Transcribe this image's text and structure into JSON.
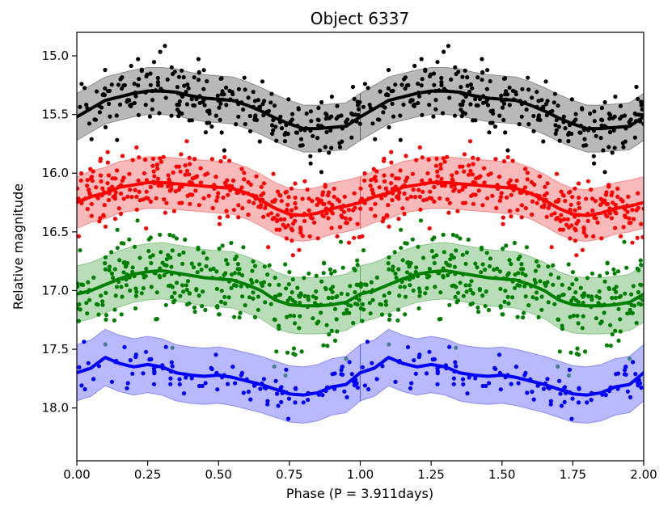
{
  "chart_data": {
    "type": "scatter",
    "title": "Object 6337",
    "xlabel": "Phase (P = 3.911days)",
    "ylabel": "Relative magnitude",
    "xlim": [
      0.0,
      2.0
    ],
    "ylim": [
      18.45,
      14.8
    ],
    "y_inverted": true,
    "grid": false,
    "legend": "none",
    "x_ticks": [
      0.0,
      0.25,
      0.5,
      0.75,
      1.0,
      1.25,
      1.5,
      1.75,
      2.0
    ],
    "x_tick_labels": [
      "0.00",
      "0.25",
      "0.50",
      "0.75",
      "1.00",
      "1.25",
      "1.50",
      "1.75",
      "2.00"
    ],
    "y_ticks": [
      15.0,
      15.5,
      16.0,
      16.5,
      17.0,
      17.5,
      18.0
    ],
    "y_tick_labels": [
      "15.0",
      "15.5",
      "16.0",
      "16.5",
      "17.0",
      "17.5",
      "18.0"
    ],
    "period_days": 3.911,
    "series": [
      {
        "color": "#000000",
        "band_color": "#808080",
        "trend_phase": [
          0.0,
          0.05,
          0.1,
          0.15,
          0.2,
          0.25,
          0.3,
          0.35,
          0.4,
          0.45,
          0.5,
          0.55,
          0.6,
          0.65,
          0.7,
          0.75,
          0.8,
          0.85,
          0.9,
          0.95,
          1.0
        ],
        "trend_mag": [
          15.52,
          15.45,
          15.38,
          15.35,
          15.32,
          15.3,
          15.3,
          15.31,
          15.34,
          15.36,
          15.37,
          15.38,
          15.42,
          15.47,
          15.53,
          15.58,
          15.62,
          15.62,
          15.61,
          15.6,
          15.52
        ],
        "band_halfwidth": 0.2,
        "scatter_sigma": 0.14,
        "n_points": 260
      },
      {
        "color": "#ff0000",
        "band_color": "#f08080",
        "trend_phase": [
          0.0,
          0.05,
          0.1,
          0.15,
          0.2,
          0.25,
          0.3,
          0.35,
          0.4,
          0.45,
          0.5,
          0.55,
          0.6,
          0.65,
          0.7,
          0.75,
          0.8,
          0.85,
          0.9,
          0.95,
          1.0
        ],
        "trend_mag": [
          16.25,
          16.2,
          16.17,
          16.12,
          16.1,
          16.08,
          16.08,
          16.09,
          16.1,
          16.11,
          16.12,
          16.13,
          16.17,
          16.23,
          16.3,
          16.35,
          16.36,
          16.34,
          16.3,
          16.28,
          16.25
        ],
        "band_halfwidth": 0.22,
        "scatter_sigma": 0.14,
        "n_points": 330
      },
      {
        "color": "#008000",
        "band_color": "#80c080",
        "trend_phase": [
          0.0,
          0.05,
          0.1,
          0.15,
          0.2,
          0.25,
          0.3,
          0.35,
          0.4,
          0.45,
          0.5,
          0.55,
          0.6,
          0.65,
          0.7,
          0.75,
          0.8,
          0.85,
          0.9,
          0.95,
          1.0
        ],
        "trend_mag": [
          17.03,
          17.0,
          16.95,
          16.9,
          16.86,
          16.84,
          16.83,
          16.85,
          16.87,
          16.89,
          16.9,
          16.91,
          16.95,
          17.0,
          17.08,
          17.12,
          17.13,
          17.13,
          17.12,
          17.1,
          17.03
        ],
        "band_halfwidth": 0.24,
        "scatter_sigma": 0.18,
        "n_points": 330
      },
      {
        "color": "#0000ff",
        "band_color": "#8080ff",
        "trend_phase": [
          0.0,
          0.05,
          0.1,
          0.15,
          0.2,
          0.25,
          0.3,
          0.35,
          0.4,
          0.45,
          0.5,
          0.55,
          0.6,
          0.65,
          0.7,
          0.75,
          0.8,
          0.85,
          0.9,
          0.95,
          1.0
        ],
        "trend_mag": [
          17.7,
          17.66,
          17.57,
          17.62,
          17.65,
          17.63,
          17.65,
          17.7,
          17.72,
          17.73,
          17.72,
          17.74,
          17.77,
          17.8,
          17.84,
          17.88,
          17.89,
          17.87,
          17.82,
          17.8,
          17.7
        ],
        "band_halfwidth": 0.24,
        "scatter_sigma": 0.1,
        "n_points": 110
      }
    ]
  }
}
